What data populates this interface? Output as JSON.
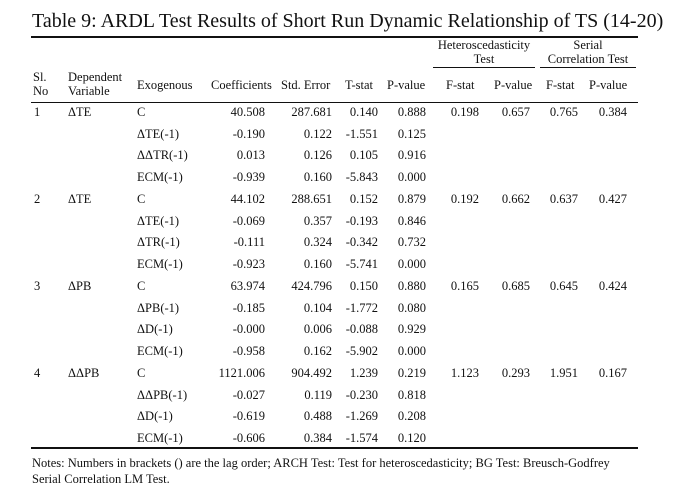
{
  "title": "Table 9: ARDL Test Results of Short Run Dynamic Relationship of TS (14-20)",
  "group_headers": {
    "hetero_line1": "Heteroscedasticity",
    "hetero_line2": "Test",
    "serial_line1": "Serial",
    "serial_line2": "Correlation Test"
  },
  "columns": {
    "sl_line1": "Sl.",
    "sl_line2": "No",
    "dep_line1": "Dependent",
    "dep_line2": "Variable",
    "exogenous": "Exogenous",
    "coefficients": "Coefficients",
    "std_error": "Std. Error",
    "tstat": "T-stat",
    "pvalue": "P-value",
    "fstat_h": "F-stat",
    "pvalue_h": "P-value",
    "fstat_s": "F-stat",
    "pvalue_s": "P-value"
  },
  "groups": [
    {
      "sl": "1",
      "dependent": "ΔTE",
      "hetero_f": "0.198",
      "hetero_p": "0.657",
      "serial_f": "0.765",
      "serial_p": "0.384",
      "rows": [
        {
          "exo": "C",
          "coef": "40.508",
          "se": "287.681",
          "t": "0.140",
          "p": "0.888"
        },
        {
          "exo": "ΔTE(-1)",
          "coef": "-0.190",
          "se": "0.122",
          "t": "-1.551",
          "p": "0.125"
        },
        {
          "exo": "ΔΔTR(-1)",
          "coef": "0.013",
          "se": "0.126",
          "t": "0.105",
          "p": "0.916"
        },
        {
          "exo": "ECM(-1)",
          "coef": "-0.939",
          "se": "0.160",
          "t": "-5.843",
          "p": "0.000"
        }
      ]
    },
    {
      "sl": "2",
      "dependent": "ΔTE",
      "hetero_f": "0.192",
      "hetero_p": "0.662",
      "serial_f": "0.637",
      "serial_p": "0.427",
      "rows": [
        {
          "exo": "C",
          "coef": "44.102",
          "se": "288.651",
          "t": "0.152",
          "p": "0.879"
        },
        {
          "exo": "ΔTE(-1)",
          "coef": "-0.069",
          "se": "0.357",
          "t": "-0.193",
          "p": "0.846"
        },
        {
          "exo": "ΔTR(-1)",
          "coef": "-0.111",
          "se": "0.324",
          "t": "-0.342",
          "p": "0.732"
        },
        {
          "exo": "ECM(-1)",
          "coef": "-0.923",
          "se": "0.160",
          "t": "-5.741",
          "p": "0.000"
        }
      ]
    },
    {
      "sl": "3",
      "dependent": "ΔPB",
      "hetero_f": "0.165",
      "hetero_p": "0.685",
      "serial_f": "0.645",
      "serial_p": "0.424",
      "rows": [
        {
          "exo": "C",
          "coef": "63.974",
          "se": "424.796",
          "t": "0.150",
          "p": "0.880"
        },
        {
          "exo": "ΔPB(-1)",
          "coef": "-0.185",
          "se": "0.104",
          "t": "-1.772",
          "p": "0.080"
        },
        {
          "exo": "ΔD(-1)",
          "coef": "-0.000",
          "se": "0.006",
          "t": "-0.088",
          "p": "0.929"
        },
        {
          "exo": "ECM(-1)",
          "coef": "-0.958",
          "se": "0.162",
          "t": "-5.902",
          "p": "0.000"
        }
      ]
    },
    {
      "sl": "4",
      "dependent": "ΔΔPB",
      "hetero_f": "1.123",
      "hetero_p": "0.293",
      "serial_f": "1.951",
      "serial_p": "0.167",
      "rows": [
        {
          "exo": "C",
          "coef": "1121.006",
          "se": "904.492",
          "t": "1.239",
          "p": "0.219"
        },
        {
          "exo": "ΔΔPB(-1)",
          "coef": "-0.027",
          "se": "0.119",
          "t": "-0.230",
          "p": "0.818"
        },
        {
          "exo": "ΔD(-1)",
          "coef": "-0.619",
          "se": "0.488",
          "t": "-1.269",
          "p": "0.208"
        },
        {
          "exo": "ECM(-1)",
          "coef": "-0.606",
          "se": "0.384",
          "t": "-1.574",
          "p": "0.120"
        }
      ]
    }
  ],
  "notes": "Notes: Numbers in brackets () are the lag order; ARCH Test: Test for heteroscedasticity; BG Test: Breusch-Godfrey Serial Correlation LM Test."
}
